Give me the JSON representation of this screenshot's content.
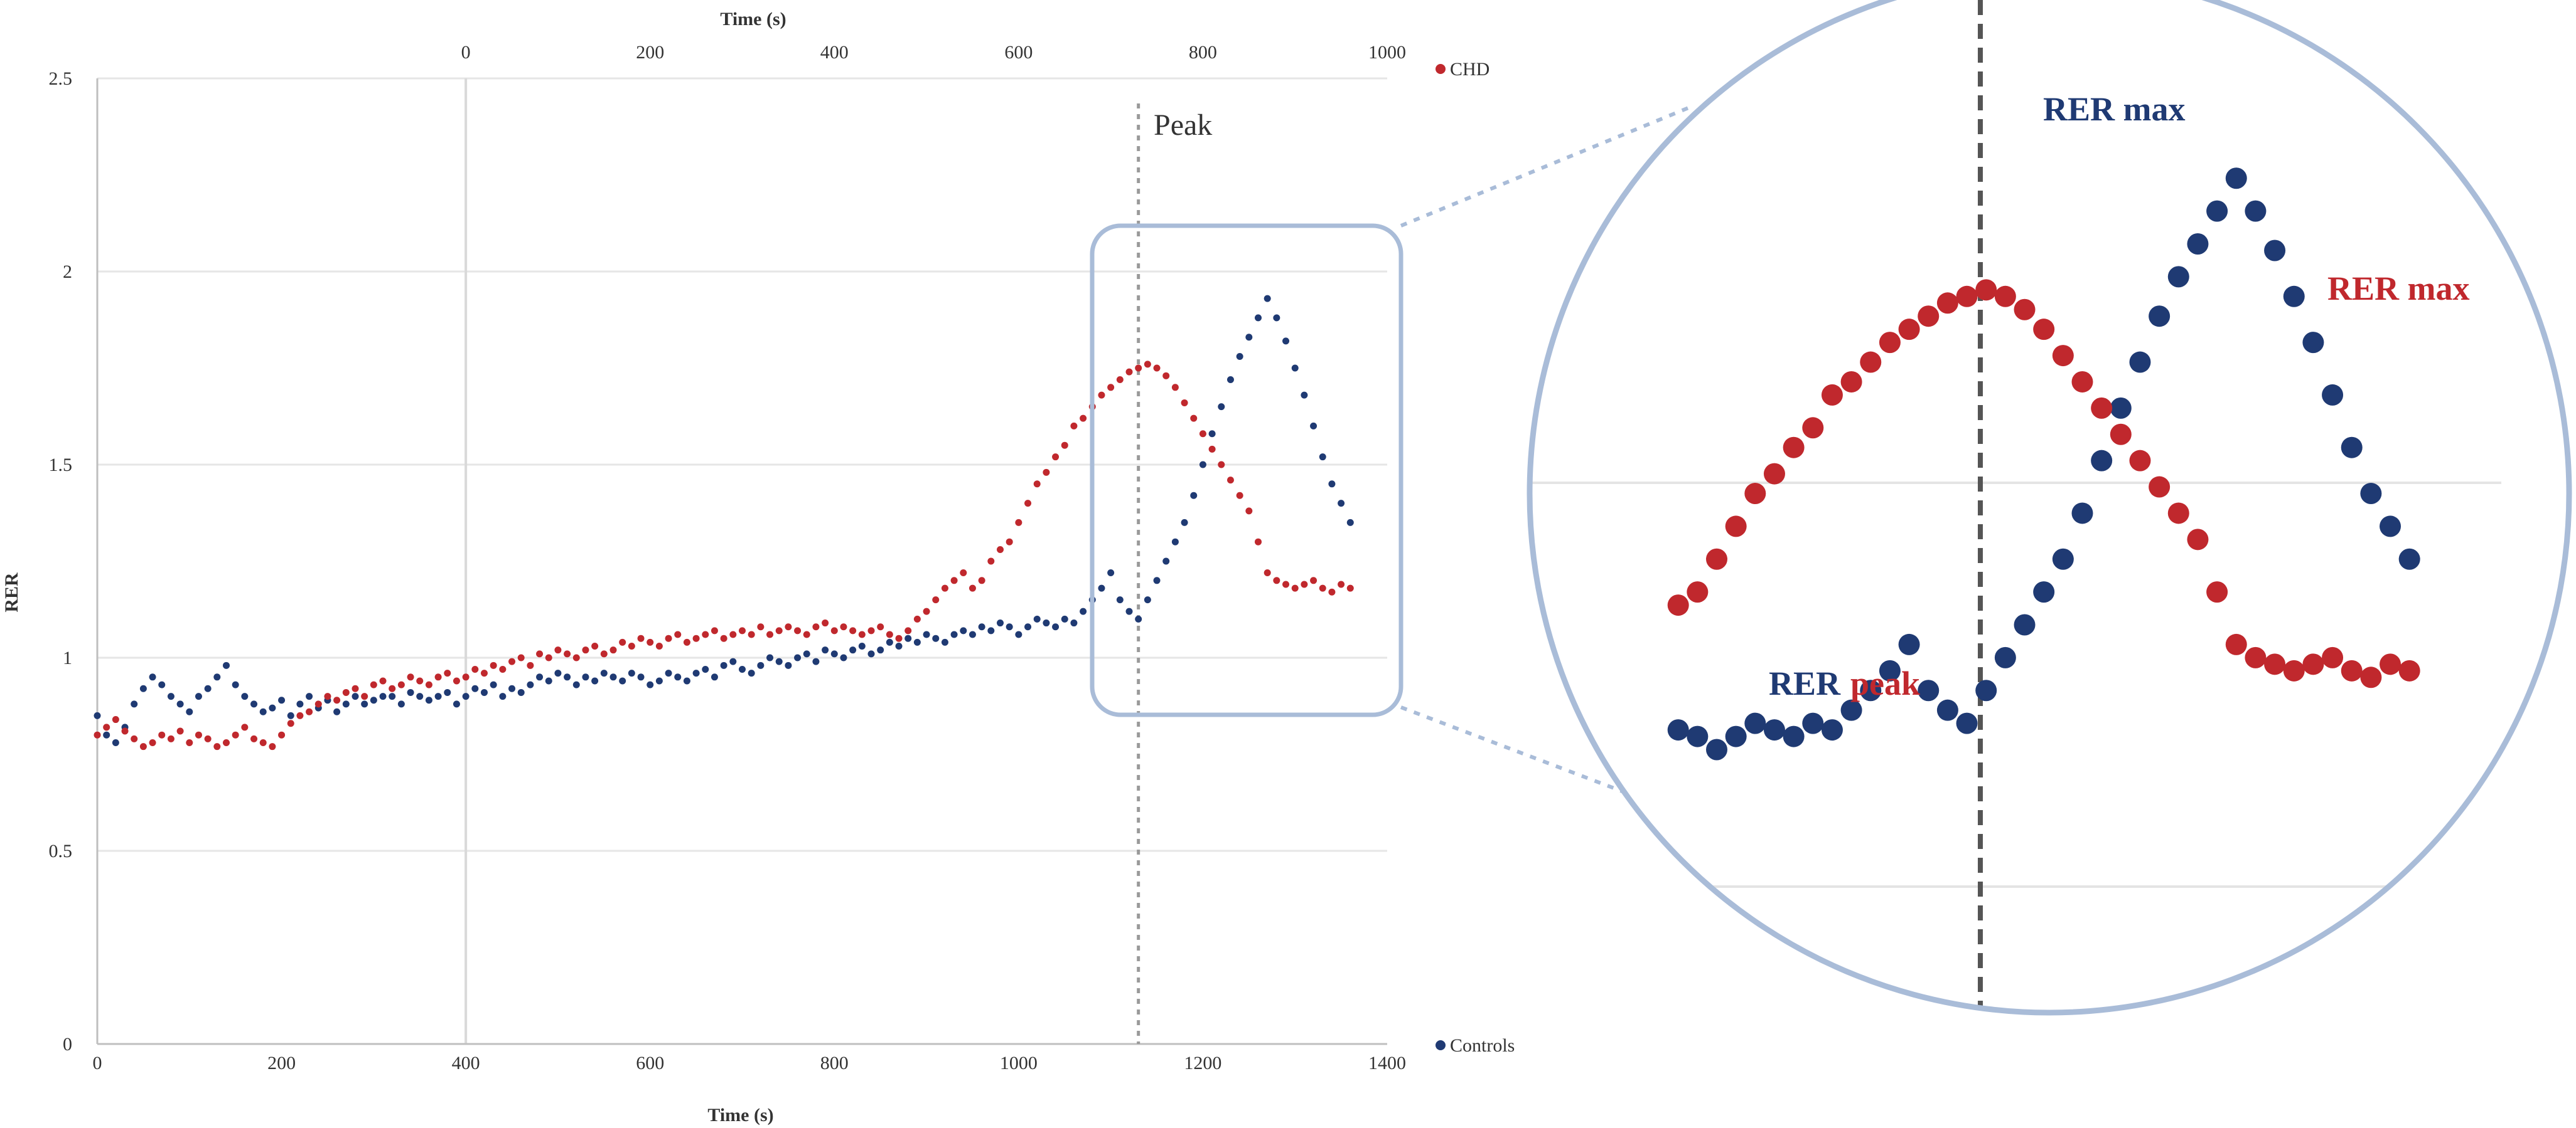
{
  "chart_data": {
    "type": "scatter",
    "title": "",
    "x_bottom": {
      "label": "Time (s)",
      "lim": [
        0,
        1400
      ],
      "ticks": [
        0,
        200,
        400,
        600,
        800,
        1000,
        1200,
        1400
      ]
    },
    "x_top": {
      "label": "Time (s)",
      "lim": [
        -400,
        1000
      ],
      "ticks": [
        0,
        200,
        400,
        600,
        800,
        1000
      ]
    },
    "y": {
      "label": "RER",
      "lim": [
        0,
        2.5
      ],
      "ticks": [
        0,
        0.5,
        1,
        1.5,
        2,
        2.5
      ],
      "tick_labels": [
        "0",
        "0.5",
        "1",
        "1.5",
        "2",
        "2.5"
      ]
    },
    "grid": true,
    "legend_position": "right",
    "series": [
      {
        "name": "Controls",
        "axis": "bottom",
        "color": "#1f3a73",
        "x": [
          0,
          10,
          20,
          30,
          40,
          50,
          60,
          70,
          80,
          90,
          100,
          110,
          120,
          130,
          140,
          150,
          160,
          170,
          180,
          190,
          200,
          210,
          220,
          230,
          240,
          250,
          260,
          270,
          280,
          290,
          300,
          310,
          320,
          330,
          340,
          350,
          360,
          370,
          380,
          390,
          400,
          410,
          420,
          430,
          440,
          450,
          460,
          470,
          480,
          490,
          500,
          510,
          520,
          530,
          540,
          550,
          560,
          570,
          580,
          590,
          600,
          610,
          620,
          630,
          640,
          650,
          660,
          670,
          680,
          690,
          700,
          710,
          720,
          730,
          740,
          750,
          760,
          770,
          780,
          790,
          800,
          810,
          820,
          830,
          840,
          850,
          860,
          870,
          880,
          890,
          900,
          910,
          920,
          930,
          940,
          950,
          960,
          970,
          980,
          990,
          1000,
          1010,
          1020,
          1030,
          1040,
          1050,
          1060,
          1070,
          1080,
          1090,
          1100,
          1110,
          1120,
          1130,
          1140,
          1150,
          1160,
          1170,
          1180,
          1190,
          1200,
          1210,
          1220,
          1230,
          1240,
          1250,
          1260,
          1270,
          1280,
          1290,
          1300,
          1310,
          1320,
          1330,
          1340,
          1350,
          1360
        ],
        "y": [
          0.85,
          0.8,
          0.78,
          0.82,
          0.88,
          0.92,
          0.95,
          0.93,
          0.9,
          0.88,
          0.86,
          0.9,
          0.92,
          0.95,
          0.98,
          0.93,
          0.9,
          0.88,
          0.86,
          0.87,
          0.89,
          0.85,
          0.88,
          0.9,
          0.87,
          0.89,
          0.86,
          0.88,
          0.9,
          0.88,
          0.89,
          0.9,
          0.9,
          0.88,
          0.91,
          0.9,
          0.89,
          0.9,
          0.91,
          0.88,
          0.9,
          0.92,
          0.91,
          0.93,
          0.9,
          0.92,
          0.91,
          0.93,
          0.95,
          0.94,
          0.96,
          0.95,
          0.93,
          0.95,
          0.94,
          0.96,
          0.95,
          0.94,
          0.96,
          0.95,
          0.93,
          0.94,
          0.96,
          0.95,
          0.94,
          0.96,
          0.97,
          0.95,
          0.98,
          0.99,
          0.97,
          0.96,
          0.98,
          1.0,
          0.99,
          0.98,
          1.0,
          1.01,
          0.99,
          1.02,
          1.01,
          1.0,
          1.02,
          1.03,
          1.01,
          1.02,
          1.04,
          1.03,
          1.05,
          1.04,
          1.06,
          1.05,
          1.04,
          1.06,
          1.07,
          1.06,
          1.08,
          1.07,
          1.09,
          1.08,
          1.06,
          1.08,
          1.1,
          1.09,
          1.08,
          1.1,
          1.09,
          1.12,
          1.15,
          1.18,
          1.22,
          1.15,
          1.12,
          1.1,
          1.15,
          1.2,
          1.25,
          1.3,
          1.35,
          1.42,
          1.5,
          1.58,
          1.65,
          1.72,
          1.78,
          1.83,
          1.88,
          1.93,
          1.88,
          1.82,
          1.75,
          1.68,
          1.6,
          1.52,
          1.45,
          1.4,
          1.35
        ]
      },
      {
        "name": "CHD",
        "axis": "top",
        "color": "#c0282d",
        "x": [
          -400,
          -390,
          -380,
          -370,
          -360,
          -350,
          -340,
          -330,
          -320,
          -310,
          -300,
          -290,
          -280,
          -270,
          -260,
          -250,
          -240,
          -230,
          -220,
          -210,
          -200,
          -190,
          -180,
          -170,
          -160,
          -150,
          -140,
          -130,
          -120,
          -110,
          -100,
          -90,
          -80,
          -70,
          -60,
          -50,
          -40,
          -30,
          -20,
          -10,
          0,
          10,
          20,
          30,
          40,
          50,
          60,
          70,
          80,
          90,
          100,
          110,
          120,
          130,
          140,
          150,
          160,
          170,
          180,
          190,
          200,
          210,
          220,
          230,
          240,
          250,
          260,
          270,
          280,
          290,
          300,
          310,
          320,
          330,
          340,
          350,
          360,
          370,
          380,
          390,
          400,
          410,
          420,
          430,
          440,
          450,
          460,
          470,
          480,
          490,
          500,
          510,
          520,
          530,
          540,
          550,
          560,
          570,
          580,
          590,
          600,
          610,
          620,
          630,
          640,
          650,
          660,
          670,
          680,
          690,
          700,
          710,
          720,
          730,
          740,
          750,
          760,
          770,
          780,
          790,
          800,
          810,
          820,
          830,
          840,
          850,
          860,
          870,
          880,
          890,
          900,
          910,
          920,
          930,
          940,
          950,
          960
        ],
        "y": [
          0.8,
          0.82,
          0.84,
          0.81,
          0.79,
          0.77,
          0.78,
          0.8,
          0.79,
          0.81,
          0.78,
          0.8,
          0.79,
          0.77,
          0.78,
          0.8,
          0.82,
          0.79,
          0.78,
          0.77,
          0.8,
          0.83,
          0.85,
          0.86,
          0.88,
          0.9,
          0.89,
          0.91,
          0.92,
          0.9,
          0.93,
          0.94,
          0.92,
          0.93,
          0.95,
          0.94,
          0.93,
          0.95,
          0.96,
          0.94,
          0.95,
          0.97,
          0.96,
          0.98,
          0.97,
          0.99,
          1.0,
          0.98,
          1.01,
          1.0,
          1.02,
          1.01,
          1.0,
          1.02,
          1.03,
          1.01,
          1.02,
          1.04,
          1.03,
          1.05,
          1.04,
          1.03,
          1.05,
          1.06,
          1.04,
          1.05,
          1.06,
          1.07,
          1.05,
          1.06,
          1.07,
          1.06,
          1.08,
          1.06,
          1.07,
          1.08,
          1.07,
          1.06,
          1.08,
          1.09,
          1.07,
          1.08,
          1.07,
          1.06,
          1.07,
          1.08,
          1.06,
          1.05,
          1.07,
          1.1,
          1.12,
          1.15,
          1.18,
          1.2,
          1.22,
          1.18,
          1.2,
          1.25,
          1.28,
          1.3,
          1.35,
          1.4,
          1.45,
          1.48,
          1.52,
          1.55,
          1.6,
          1.62,
          1.65,
          1.68,
          1.7,
          1.72,
          1.74,
          1.75,
          1.76,
          1.75,
          1.73,
          1.7,
          1.66,
          1.62,
          1.58,
          1.54,
          1.5,
          1.46,
          1.42,
          1.38,
          1.3,
          1.22,
          1.2,
          1.19,
          1.18,
          1.19,
          1.2,
          1.18,
          1.17,
          1.19,
          1.18
        ]
      }
    ],
    "annotations": {
      "peak_label": "Peak",
      "peak_line_x": 1130,
      "zoom_rer": "RER",
      "zoom_peak": "peak",
      "zoom_max_controls": "RER max",
      "zoom_max_chd": "RER max"
    }
  }
}
